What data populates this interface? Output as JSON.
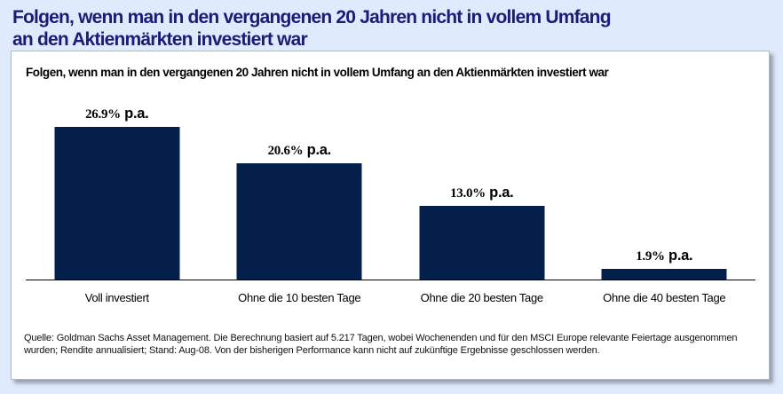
{
  "page": {
    "title_line1": "Folgen, wenn man in den vergangenen 20 Jahren nicht in vollem Umfang",
    "title_line2": "an den Aktienmärkten investiert war"
  },
  "panel": {
    "chart_title": "Folgen, wenn man in den vergangenen 20 Jahren nicht in vollem Umfang an den Aktienmärkten investiert war",
    "source": "Quelle: Goldman Sachs Asset Management. Die Berechnung basiert auf 5.217 Tagen, wobei Wochenenden und für den MSCI Europe relevante Feiertage ausgenommen wurden; Rendite annualisiert; Stand: Aug-08. Von der bisherigen Performance kann nicht auf zukünftige Ergebnisse geschlossen werden."
  },
  "colors": {
    "background": "#dfeafc",
    "title_text": "#1b1b78",
    "bar": "#04204a",
    "axis": "#000000"
  },
  "chart_data": {
    "type": "bar",
    "title": "Folgen, wenn man in den vergangenen 20 Jahren nicht in vollem Umfang an den Aktienmärkten investiert war",
    "categories": [
      "Voll investiert",
      "Ohne die 10 besten Tage",
      "Ohne die 20 besten Tage",
      "Ohne die 40 besten Tage"
    ],
    "values": [
      26.9,
      20.6,
      13.0,
      1.9
    ],
    "value_labels": [
      "26.9%",
      "20.6%",
      "13.0%",
      "1.9%"
    ],
    "unit_suffix": "p.a.",
    "xlabel": "",
    "ylabel": "",
    "ylim": [
      0,
      30
    ],
    "grid": false,
    "legend": "none"
  }
}
